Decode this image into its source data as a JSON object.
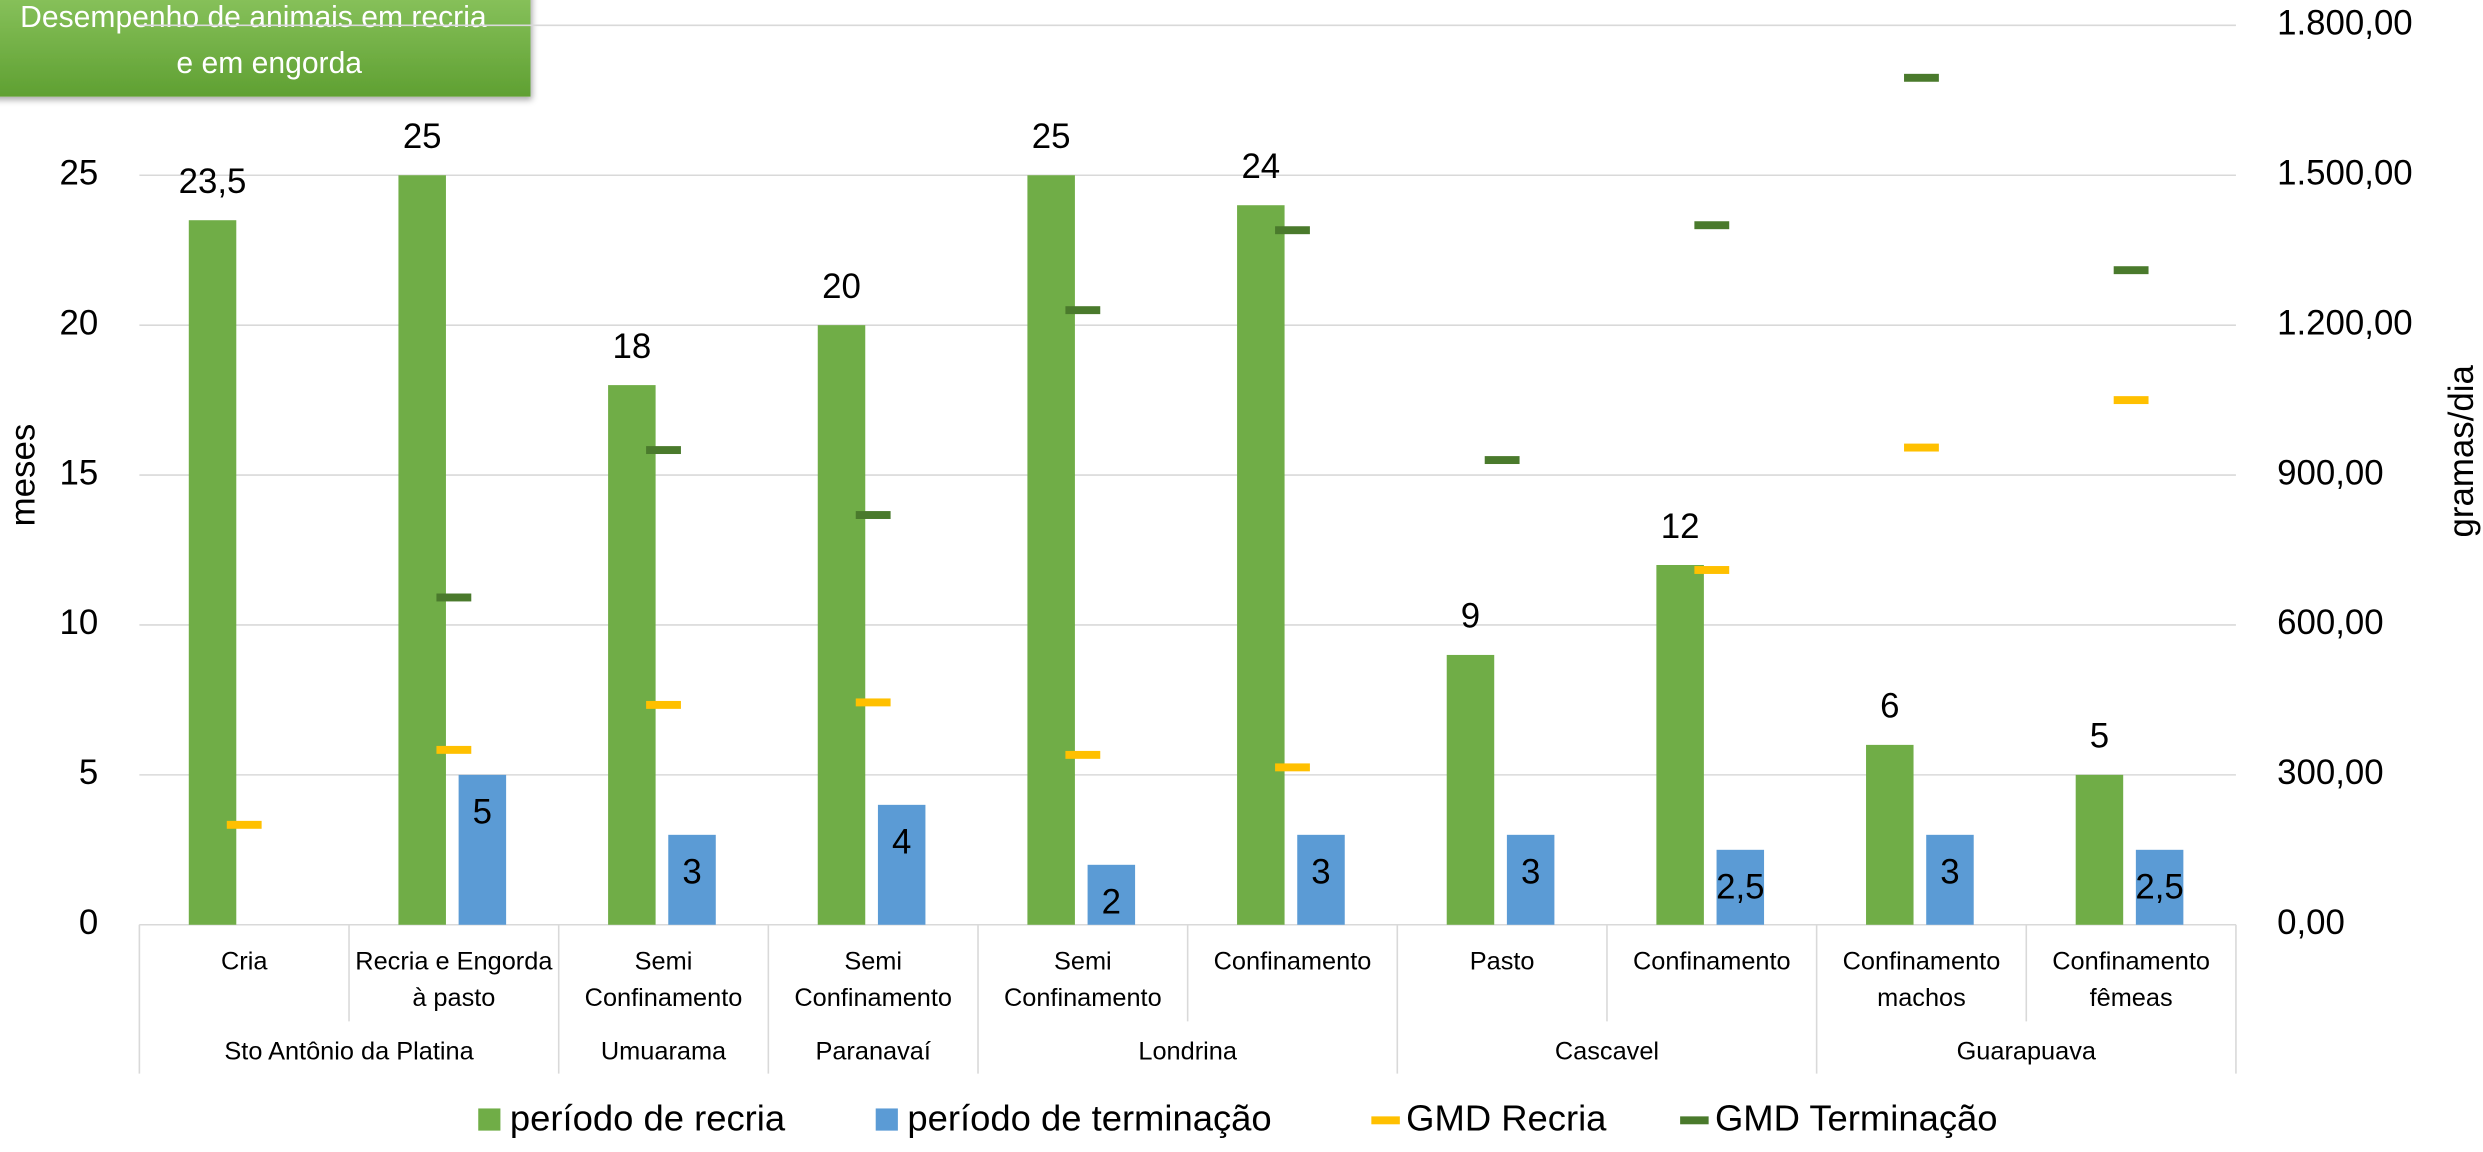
{
  "chart_data": {
    "type": "bar",
    "title": [
      "Desempenho de animais em recria",
      "e em engorda"
    ],
    "y_label": "meses",
    "y2_label": "gramas/dia",
    "categories": [
      [
        "Cria"
      ],
      [
        "Recria e Engorda",
        "à pasto"
      ],
      [
        "Semi",
        "Confinamento"
      ],
      [
        "Semi",
        "Confinamento"
      ],
      [
        "Semi",
        "Confinamento"
      ],
      [
        "Confinamento"
      ],
      [
        "Pasto"
      ],
      [
        "Confinamento"
      ],
      [
        "Confinamento",
        "machos"
      ],
      [
        "Confinamento",
        "fêmeas"
      ]
    ],
    "groups": [
      {
        "name": "Sto Antônio da Platina",
        "size": 2
      },
      {
        "name": "Umuarama",
        "size": 1
      },
      {
        "name": "Paranavaí",
        "size": 1
      },
      {
        "name": "Londrina",
        "size": 2
      },
      {
        "name": "Cascavel",
        "size": 2
      },
      {
        "name": "Guarapuava",
        "size": 2
      }
    ],
    "series": [
      {
        "name": "período de recria",
        "color": "#70ad47",
        "style": "bar",
        "values": [
          23.5,
          25,
          18,
          20,
          25,
          24,
          9,
          12,
          6,
          5
        ],
        "value_labels": [
          "23,5",
          "25",
          "18",
          "20",
          "25",
          "24",
          "9",
          "12",
          "6",
          "5"
        ]
      },
      {
        "name": "período de terminação",
        "color": "#5b9bd5",
        "style": "bar",
        "values": [
          null,
          5,
          3,
          4,
          2,
          3,
          3,
          2.5,
          3,
          2.5
        ],
        "value_labels": [
          null,
          "5",
          "3",
          "4",
          "2",
          "3",
          "3",
          "2,5",
          "3",
          "2,5"
        ]
      },
      {
        "name": "GMD Recria",
        "color": "#ffc000",
        "style": "dash",
        "axis": "y2",
        "values": [
          200,
          350,
          440,
          445,
          340,
          315,
          null,
          710,
          955,
          1050
        ]
      },
      {
        "name": "GMD Terminação",
        "color": "#4a7a2c",
        "style": "dash",
        "axis": "y2",
        "values": [
          null,
          655,
          950,
          820,
          1230,
          1390,
          930,
          1400,
          1695,
          1310
        ]
      }
    ],
    "ylim": [
      0,
      30
    ],
    "yticks": [
      0,
      5,
      10,
      15,
      20,
      25
    ],
    "y2lim": [
      0,
      1800
    ],
    "y2ticks": [
      {
        "value": 0,
        "label": "0,00"
      },
      {
        "value": 300,
        "label": "300,00"
      },
      {
        "value": 600,
        "label": "600,00"
      },
      {
        "value": 900,
        "label": "900,00"
      },
      {
        "value": 1200,
        "label": "1.200,00"
      },
      {
        "value": 1500,
        "label": "1.500,00"
      },
      {
        "value": 1800,
        "label": "1.800,00"
      }
    ],
    "grid": true,
    "legend": "bottom"
  }
}
